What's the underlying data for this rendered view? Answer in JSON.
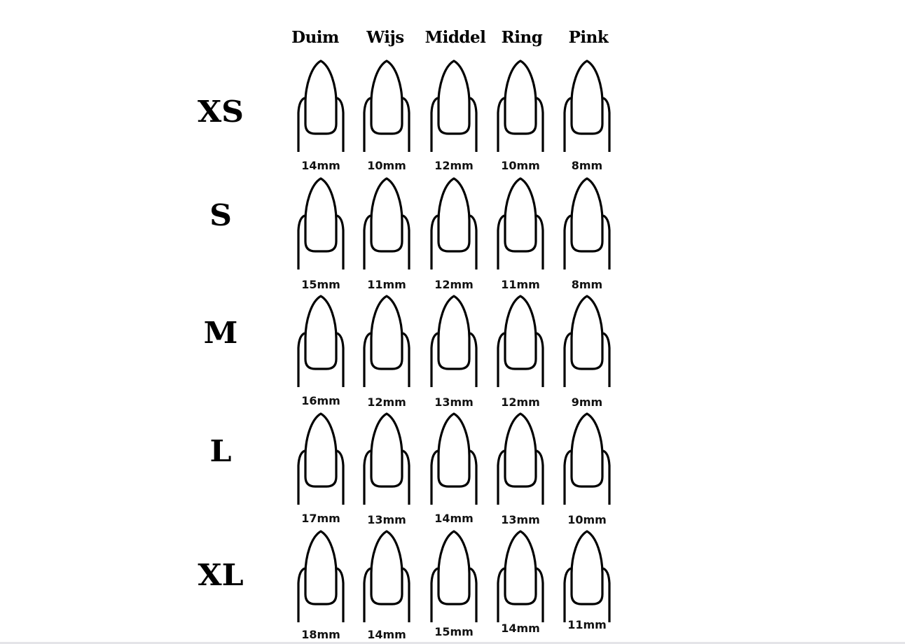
{
  "fingers": [
    "Duim",
    "Wijs",
    "Middel",
    "Ring",
    "Pink"
  ],
  "sizes": [
    {
      "label": "XS",
      "mm": [
        "14mm",
        "10mm",
        "12mm",
        "10mm",
        "8mm"
      ]
    },
    {
      "label": "S",
      "mm": [
        "15mm",
        "11mm",
        "12mm",
        "11mm",
        "8mm"
      ]
    },
    {
      "label": "M",
      "mm": [
        "16mm",
        "12mm",
        "13mm",
        "12mm",
        "9mm"
      ]
    },
    {
      "label": "L",
      "mm": [
        "17mm",
        "13mm",
        "14mm",
        "13mm",
        "10mm"
      ]
    },
    {
      "label": "XL",
      "mm": [
        "18mm",
        "14mm",
        "15mm",
        "14mm",
        "11mm"
      ]
    }
  ],
  "icon": "stiletto-nail-icon",
  "colors": {
    "line": "#000000",
    "background": "#ffffff"
  }
}
